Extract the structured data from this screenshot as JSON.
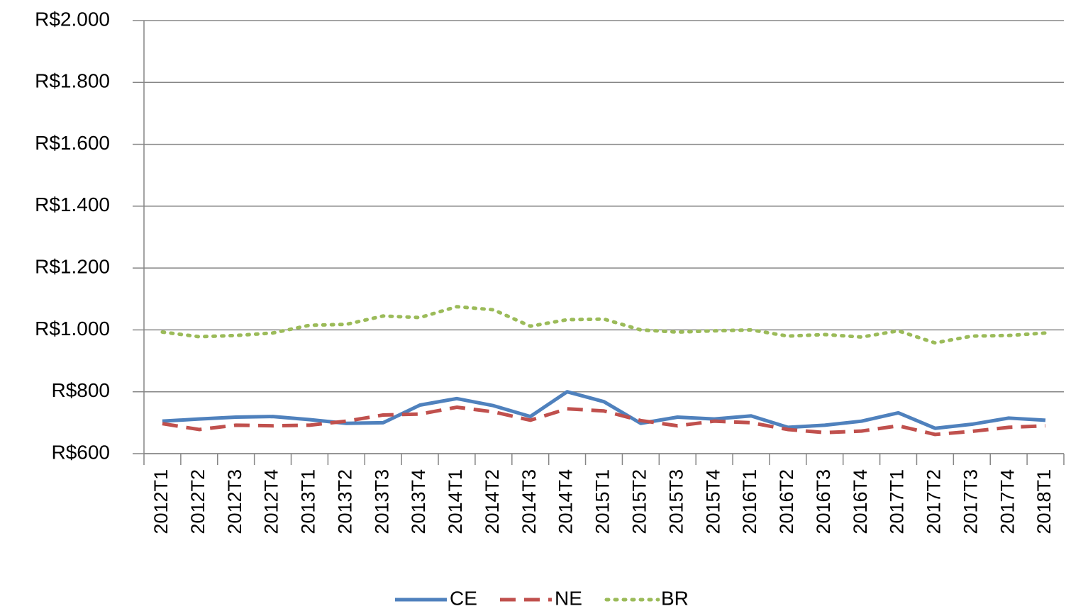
{
  "chart_data": {
    "type": "line",
    "categories": [
      "2012T1",
      "2012T2",
      "2012T3",
      "2012T4",
      "2013T1",
      "2013T2",
      "2013T3",
      "2013T4",
      "2014T1",
      "2014T2",
      "2014T3",
      "2014T4",
      "2015T1",
      "2015T2",
      "2015T3",
      "2015T4",
      "2016T1",
      "2016T2",
      "2016T3",
      "2016T4",
      "2017T1",
      "2017T2",
      "2017T3",
      "2017T4",
      "2018T1"
    ],
    "series": [
      {
        "name": "CE",
        "color": "#4f81bd",
        "dash": "solid",
        "values": [
          705,
          712,
          718,
          720,
          710,
          698,
          700,
          757,
          778,
          755,
          720,
          800,
          768,
          698,
          718,
          712,
          722,
          685,
          692,
          705,
          732,
          682,
          695,
          715,
          708
        ]
      },
      {
        "name": "NE",
        "color": "#c0504d",
        "dash": "dashed",
        "values": [
          697,
          678,
          692,
          690,
          692,
          705,
          725,
          728,
          750,
          735,
          708,
          745,
          738,
          707,
          690,
          705,
          700,
          678,
          668,
          673,
          690,
          662,
          672,
          685,
          690
        ]
      },
      {
        "name": "BR",
        "color": "#9bbb59",
        "dash": "dotted",
        "values": [
          993,
          978,
          982,
          990,
          1015,
          1018,
          1045,
          1040,
          1075,
          1065,
          1012,
          1033,
          1035,
          1000,
          993,
          997,
          1000,
          980,
          985,
          977,
          997,
          958,
          980,
          982,
          990
        ]
      }
    ],
    "ylim": [
      600,
      2000
    ],
    "yticks": [
      {
        "value": 600,
        "label": "R$600"
      },
      {
        "value": 800,
        "label": "R$800"
      },
      {
        "value": 1000,
        "label": "R$1.000"
      },
      {
        "value": 1200,
        "label": "R$1.200"
      },
      {
        "value": 1400,
        "label": "R$1.400"
      },
      {
        "value": 1600,
        "label": "R$1.600"
      },
      {
        "value": 1800,
        "label": "R$1.800"
      },
      {
        "value": 2000,
        "label": "R$2.000"
      }
    ],
    "grid": true,
    "legend": "bottom"
  }
}
